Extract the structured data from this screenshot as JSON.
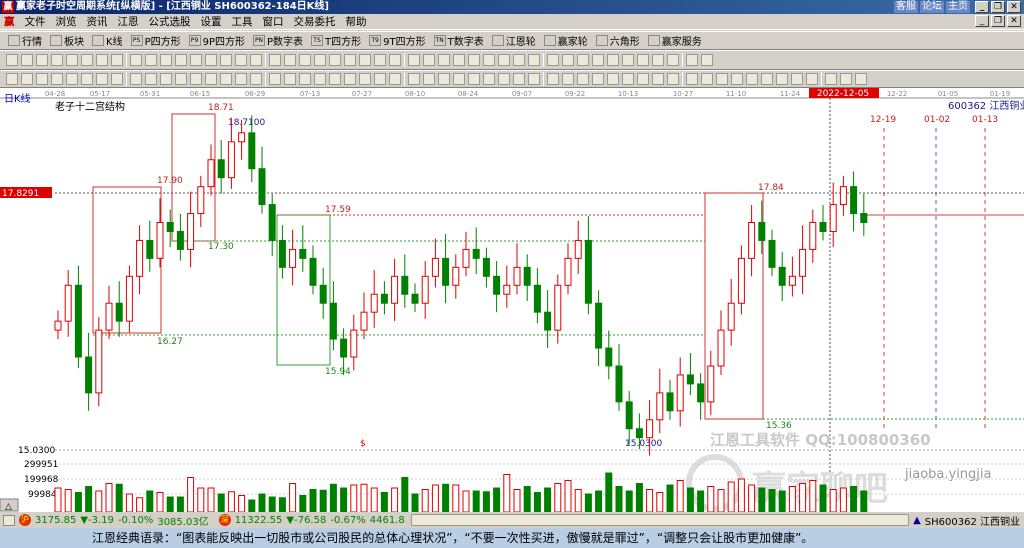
{
  "window": {
    "title": "赢家老子时空周期系统[纵横版] - [江西铜业  SH600362-184日K线]",
    "links": [
      "客服",
      "论坛",
      "主页"
    ],
    "logo": "赢"
  },
  "menu": [
    "文件",
    "浏览",
    "资讯",
    "江恩",
    "公式选股",
    "设置",
    "工具",
    "窗口",
    "交易委托",
    "帮助"
  ],
  "toolbar": [
    {
      "icon": "quote-icon",
      "label": "行情"
    },
    {
      "icon": "sector-icon",
      "label": "板块"
    },
    {
      "icon": "kline-icon",
      "label": "K线"
    },
    {
      "icon": "PS",
      "label": "P四方形"
    },
    {
      "icon": "P9",
      "label": "9P四方形"
    },
    {
      "icon": "PN",
      "label": "P数字表"
    },
    {
      "icon": "TS",
      "label": "T四方形"
    },
    {
      "icon": "T9",
      "label": "9T四方形"
    },
    {
      "icon": "TN",
      "label": "T数字表"
    },
    {
      "icon": "wheel-icon",
      "label": "江恩轮"
    },
    {
      "icon": "wheel2-icon",
      "label": "赢家轮"
    },
    {
      "icon": "hexagon-icon",
      "label": "六角形"
    },
    {
      "icon": "service-icon",
      "label": "赢家服务"
    }
  ],
  "chart": {
    "period_label": "日K线",
    "study_label": "老子十二宫结构",
    "stock": "600362  江西铜业",
    "dates": [
      "04-28",
      "05-17",
      "05-31",
      "06-15",
      "06-29",
      "07-13",
      "07-27",
      "08-10",
      "08-24",
      "09-07",
      "09-22",
      "10-13",
      "10-27",
      "11-10",
      "11-24",
      "2022-12-05",
      "12-22",
      "01-05",
      "01-19"
    ],
    "future_dates": [
      "12-19",
      "01-02",
      "01-13"
    ],
    "current_price": "17.8291",
    "low_price": "15.0300",
    "annotations": [
      "18.71",
      "18.7100",
      "17.90",
      "17.30",
      "17.59",
      "16.27",
      "15.94",
      "17.84",
      "15.36",
      "15.0300"
    ],
    "volume_ticks": [
      "299951",
      "199968",
      "99984"
    ],
    "dollar_mark": "$",
    "watermark": [
      "江恩工具软件  QQ:100800360",
      "赢家聊吧",
      "jiaoba.yingjia"
    ],
    "colors": {
      "up": "#e00000",
      "down": "#008000",
      "current": "#e00000"
    },
    "closes": [
      16.4,
      16.8,
      16.0,
      15.6,
      16.3,
      16.6,
      16.4,
      16.9,
      17.3,
      17.1,
      17.5,
      17.4,
      17.2,
      17.6,
      17.9,
      18.2,
      18.0,
      18.4,
      18.5,
      18.1,
      17.7,
      17.3,
      17.0,
      17.2,
      17.1,
      16.8,
      16.6,
      16.2,
      16.0,
      16.3,
      16.5,
      16.7,
      16.6,
      16.9,
      16.7,
      16.6,
      16.9,
      17.1,
      16.8,
      17.0,
      17.2,
      17.1,
      16.9,
      16.7,
      16.8,
      17.0,
      16.8,
      16.5,
      16.3,
      16.8,
      17.1,
      17.3,
      16.6,
      16.1,
      15.9,
      15.5,
      15.2,
      15.1,
      15.3,
      15.6,
      15.4,
      15.8,
      15.7,
      15.5,
      15.9,
      16.3,
      16.6,
      17.1,
      17.5,
      17.3,
      17.0,
      16.8,
      16.9,
      17.2,
      17.5,
      17.4,
      17.7,
      17.9,
      17.6,
      17.5
    ],
    "volumes": [
      160,
      150,
      130,
      170,
      140,
      190,
      185,
      120,
      95,
      140,
      130,
      100,
      100,
      230,
      160,
      160,
      120,
      135,
      110,
      80,
      120,
      100,
      95,
      190,
      110,
      150,
      145,
      185,
      160,
      180,
      185,
      160,
      130,
      160,
      230,
      120,
      150,
      180,
      185,
      180,
      140,
      140,
      135,
      160,
      250,
      150,
      170,
      130,
      160,
      190,
      210,
      150,
      120,
      140,
      260,
      170,
      140,
      190,
      150,
      130,
      180,
      210,
      160,
      140,
      170,
      150,
      200,
      220,
      180,
      160,
      150,
      140,
      170,
      190,
      210,
      180,
      150,
      160,
      170,
      140
    ]
  },
  "status": {
    "sh_index": "3175.85",
    "sh_change": "▼-3.19",
    "sh_pct": "-0.10%",
    "sh_amount": "3085.03亿",
    "sz_index": "11322.55",
    "sz_change": "▼-76.58",
    "sz_pct": "-0.67%",
    "sz_amount": "4461.8",
    "stock": "SH600362 江西铜业",
    "sh_icon": "沪",
    "sz_icon": "深"
  },
  "quote": "江恩经典语录：“图表能反映出一切股市或公司股民的总体心理状况”，“不要一次性买进，傲慢就是罪过”，“调整只会让股市更加健康”。"
}
